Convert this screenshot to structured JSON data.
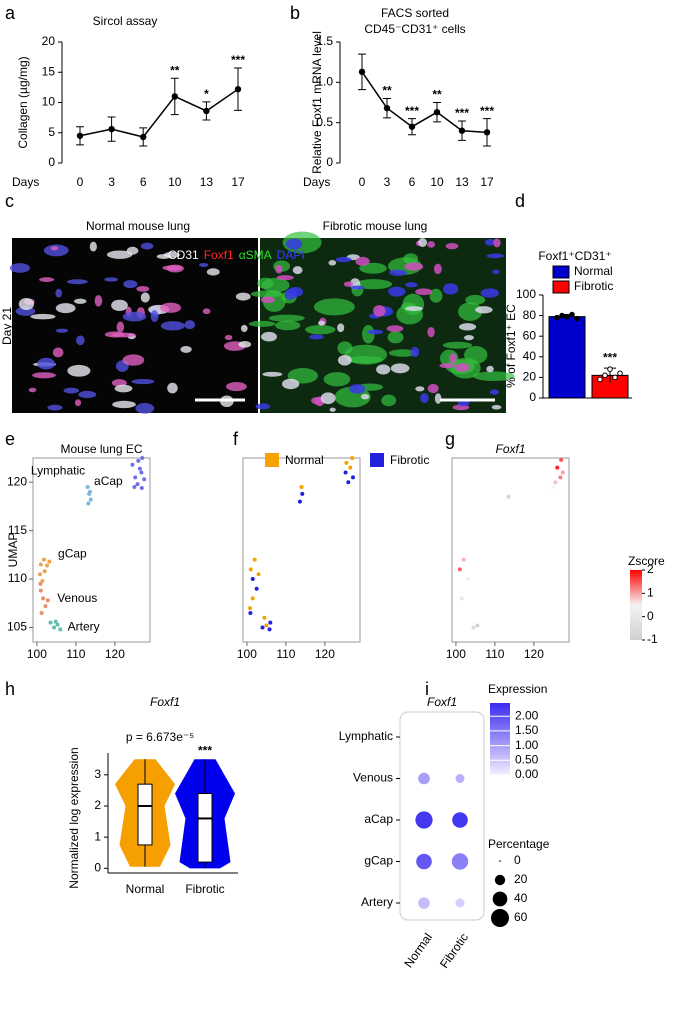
{
  "panel_labels": [
    "a",
    "b",
    "c",
    "d",
    "e",
    "f",
    "g",
    "h",
    "i"
  ],
  "images": {
    "normal_title": "Normal mouse lung",
    "fibrotic_title": "Fibrotic mouse lung",
    "time": "Day 21",
    "stains": [
      {
        "name": "CD31",
        "color": "#ffffff"
      },
      {
        "name": "Foxf1",
        "color": "#ff2a2a"
      },
      {
        "name": "αSMA",
        "color": "#2fe02f"
      },
      {
        "name": "DAPI",
        "color": "#3a3aff"
      }
    ]
  },
  "chart_data": [
    {
      "type": "line",
      "title": "Sircol assay",
      "y_label": "Collagen (µg/mg)",
      "x_label": "Days",
      "color": "#000000",
      "categories": [
        "0",
        "3",
        "6",
        "10",
        "13",
        "17"
      ],
      "values": [
        4.5,
        5.6,
        4.3,
        11,
        8.6,
        12.2
      ],
      "errors": [
        1.5,
        2,
        1.5,
        3,
        1.5,
        3.5
      ],
      "significance": [
        null,
        null,
        null,
        "**",
        "*",
        "***"
      ],
      "ylim": [
        0,
        20
      ],
      "yticks": [
        0,
        5,
        10,
        15,
        20
      ]
    },
    {
      "type": "line",
      "title": [
        "FACS sorted",
        "CD45⁻CD31⁺ cells"
      ],
      "y_label": "Relative Foxf1 mRNA level",
      "x_label": "Days",
      "color": "#000000",
      "categories": [
        "0",
        "3",
        "6",
        "10",
        "13",
        "17"
      ],
      "values": [
        1.13,
        0.68,
        0.45,
        0.63,
        0.4,
        0.38
      ],
      "errors": [
        0.22,
        0.12,
        0.1,
        0.12,
        0.12,
        0.17
      ],
      "significance": [
        null,
        "**",
        "***",
        "**",
        "***",
        "***"
      ],
      "ylim": [
        0,
        1.5
      ],
      "yticks": [
        0,
        0.5,
        {
          "value": 1,
          "label": "1.0"
        },
        1.5
      ]
    },
    {
      "type": "bar",
      "legend_title": "Foxf1⁺CD31⁺",
      "y_label": "% of Foxf1⁺ EC",
      "series": [
        {
          "name": "Normal",
          "color": "#0000cc",
          "values": [
            79
          ],
          "errors": [
            2
          ],
          "points": [
            78,
            80,
            79,
            81,
            77
          ],
          "significance": null
        },
        {
          "name": "Fibrotic",
          "color": "#ff0000",
          "values": [
            22
          ],
          "errors": [
            7
          ],
          "points": [
            18,
            22,
            28,
            20,
            24
          ],
          "significance": "***"
        }
      ],
      "ylim": [
        0,
        100
      ],
      "yticks": [
        0,
        20,
        40,
        60,
        80,
        100
      ]
    },
    {
      "type": "scatter",
      "title": "Mouse lung EC",
      "y_label": "UMAP",
      "xlim": [
        99,
        129
      ],
      "ylim": [
        103.5,
        122.5
      ],
      "xticks": [
        100,
        110,
        120
      ],
      "yticks": [
        105,
        110,
        115,
        120
      ],
      "series": [
        {
          "name": "aCap",
          "color": "#6f6fe6",
          "x": [
            124.5,
            125.2,
            126,
            126.8,
            127.5,
            125.8,
            126.4,
            127,
            125,
            126.9
          ],
          "y": [
            121.8,
            120.5,
            122.2,
            121,
            120.3,
            119.8,
            121.4,
            122.5,
            119.5,
            119.4
          ]
        },
        {
          "name": "Lymphatic",
          "color": "#79b9e0",
          "x": [
            113,
            113.4,
            113.8,
            113.2,
            113.6
          ],
          "y": [
            119.5,
            118.8,
            118.2,
            117.8,
            119
          ]
        },
        {
          "name": "gCap",
          "color": "#f0a050",
          "x": [
            101,
            101.8,
            102.6,
            103.2,
            100.8,
            102,
            101.4
          ],
          "y": [
            111.5,
            112,
            111.4,
            111.8,
            110.5,
            110.8,
            109.8
          ]
        },
        {
          "name": "Venous",
          "color": "#e8906f",
          "x": [
            101,
            101.6,
            102.2,
            101.2,
            102.8,
            100.9
          ],
          "y": [
            108.8,
            108,
            107.2,
            106.5,
            107.8,
            109.5
          ]
        },
        {
          "name": "Artery",
          "color": "#5fc0b0",
          "x": [
            103.5,
            104.4,
            105.3,
            106,
            104.8
          ],
          "y": [
            105.5,
            105,
            105.3,
            104.8,
            105.6
          ]
        }
      ]
    },
    {
      "type": "scatter",
      "xlim": [
        99,
        129
      ],
      "ylim": [
        103.5,
        122.5
      ],
      "xticks": [
        100,
        110,
        120
      ],
      "legend": "top",
      "series": [
        {
          "name": "Normal",
          "color": "#f5a300",
          "x": [
            101,
            102,
            101.5,
            103,
            100.8,
            114,
            125.5,
            126.5,
            127,
            105,
            104.5
          ],
          "y": [
            111,
            112,
            108,
            110.5,
            107,
            119.5,
            122,
            121.5,
            122.5,
            105.2,
            106
          ]
        },
        {
          "name": "Fibrotic",
          "color": "#2020dd",
          "x": [
            101.5,
            102.5,
            100.9,
            104,
            113.6,
            114.2,
            126,
            127.2,
            125.3,
            105.8,
            106
          ],
          "y": [
            110,
            109,
            106.5,
            105,
            118,
            118.8,
            120,
            120.5,
            121,
            104.8,
            105.5
          ]
        }
      ]
    },
    {
      "type": "heat-scatter",
      "title": "Foxf1",
      "xlim": [
        99,
        129
      ],
      "ylim": [
        103.5,
        122.5
      ],
      "xticks": [
        100,
        110,
        120
      ],
      "x": [
        126,
        127,
        125.5,
        126.8,
        113.5,
        101,
        102,
        101.5,
        103,
        104.5,
        105.5,
        125,
        127.4
      ],
      "y": [
        121.5,
        122.3,
        120,
        120.5,
        118.5,
        111,
        112,
        108,
        110,
        105,
        105.2,
        119.5,
        121
      ],
      "values": [
        1.8,
        1.5,
        0.8,
        1.2,
        -0.8,
        1.4,
        0.9,
        0,
        0.3,
        -0.6,
        -0.9,
        0.5,
        1
      ],
      "colorbar": {
        "title": "Zscore",
        "lim": [
          -1,
          2
        ],
        "ticks": [
          -1,
          0,
          1,
          2
        ],
        "colors": [
          "#cfcfcf",
          "#f4f4f4",
          "#ff0000"
        ]
      }
    },
    {
      "type": "violin",
      "title": "Foxf1",
      "annotation": "p = 6.673e⁻⁵",
      "y_label": "Normalized log expression",
      "categories": [
        "Normal",
        "Fibrotic"
      ],
      "colors": [
        "#f5a000",
        "#0000ee"
      ],
      "whisker_low": [
        0.05,
        0
      ],
      "q1": [
        0.75,
        0.2
      ],
      "median": [
        2,
        1.6
      ],
      "q3": [
        2.7,
        2.4
      ],
      "whisker_high": [
        3.5,
        3.5
      ],
      "significance": [
        null,
        "***"
      ],
      "ylim": [
        -0.15,
        3.7
      ],
      "yticks": [
        0,
        1,
        2,
        3
      ]
    },
    {
      "type": "dot",
      "title": "Foxf1",
      "categories": [
        "Normal",
        "Fibrotic"
      ],
      "rows": [
        "Lymphatic",
        "Venous",
        "aCap",
        "gCap",
        "Artery"
      ],
      "expression": [
        [
          0,
          0
        ],
        [
          1,
          0.8
        ],
        [
          2.3,
          2.3
        ],
        [
          1.9,
          1.4
        ],
        [
          0.6,
          0.4
        ]
      ],
      "percentage": [
        [
          0,
          0
        ],
        [
          25,
          15
        ],
        [
          55,
          45
        ],
        [
          45,
          50
        ],
        [
          25,
          15
        ]
      ],
      "color_legend": {
        "title": "Expression",
        "lim": [
          0,
          2.45
        ],
        "colors": [
          "#f4eeff",
          "#3a2cf0"
        ],
        "ticks": [
          {
            "value": 0,
            "label": "0.00"
          },
          {
            "value": 0.5,
            "label": "0.50"
          },
          {
            "value": 1,
            "label": "1.00"
          },
          {
            "value": 1.5,
            "label": "1.50"
          },
          {
            "value": 2,
            "label": "2.00"
          }
        ]
      },
      "size_legend": {
        "title": "Percentage",
        "values": [
          0,
          20,
          40,
          60
        ]
      }
    }
  ]
}
